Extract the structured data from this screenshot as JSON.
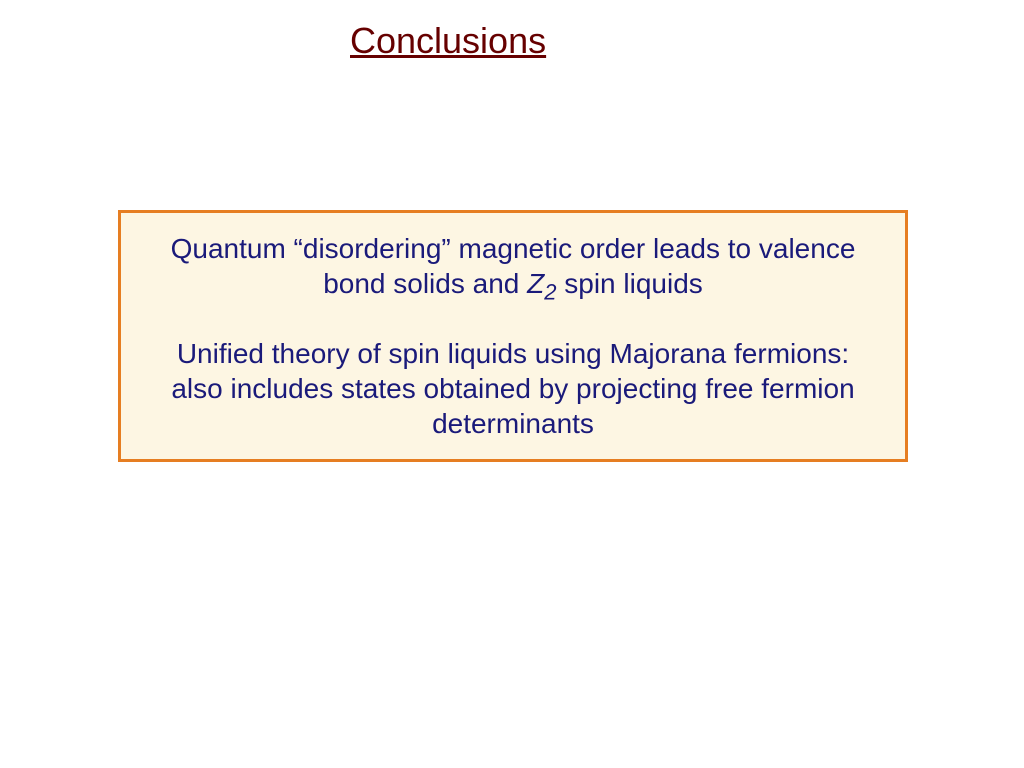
{
  "title": {
    "text": "Conclusions",
    "color": "#660000",
    "fontsize": 36,
    "underline": true
  },
  "box": {
    "background_color": "#fdf6e3",
    "border_color": "#e67e22",
    "border_width": 3
  },
  "paragraphs": {
    "p1_part1": "Quantum “disordering” magnetic order leads to valence bond solids and ",
    "p1_z": "Z",
    "p1_sub": "2",
    "p1_part2": " spin liquids",
    "p2": "Unified theory of spin liquids using Majorana fermions: also includes states obtained by projecting free fermion determinants"
  },
  "text_style": {
    "color": "#1a1a7a",
    "fontsize": 28,
    "subscript_fontsize": 22
  }
}
